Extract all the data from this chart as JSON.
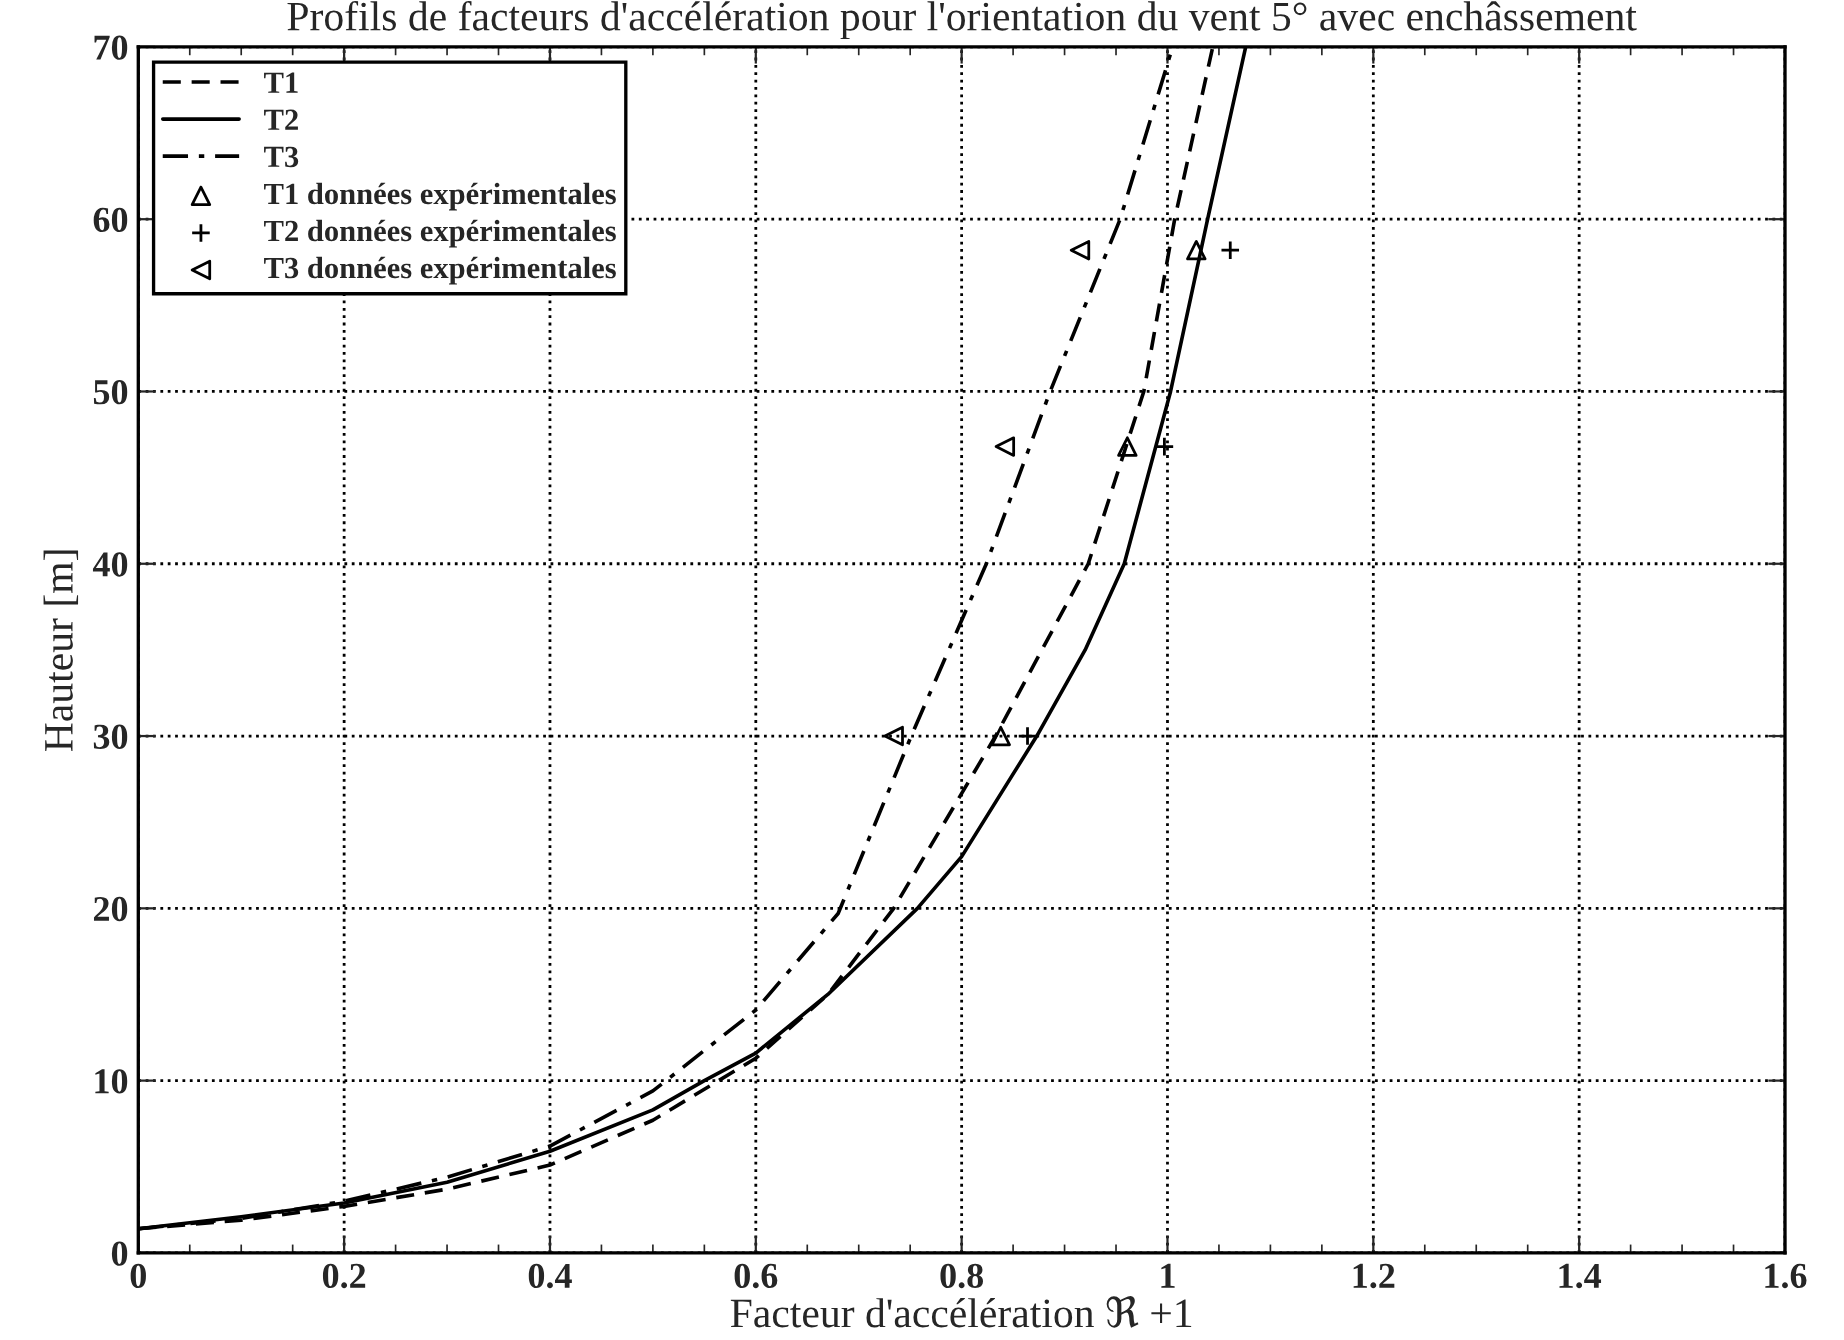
{
  "chart_data": {
    "type": "line",
    "title": "Profils de facteurs d'accélération pour l'orientation du vent 5° avec enchâssement",
    "xlabel": "Facteur d'accélération ℜ +1",
    "ylabel": "Hauteur [m]",
    "xlim": [
      0,
      1.6
    ],
    "xticks": [
      0,
      0.2,
      0.4,
      0.6,
      0.8,
      1,
      1.2,
      1.4,
      1.6
    ],
    "ylim": [
      0,
      70
    ],
    "yticks": [
      0,
      10,
      20,
      30,
      40,
      50,
      60,
      70
    ],
    "grid": true,
    "legend": "top left",
    "series": [
      {
        "name": "T1",
        "line_style": "dashed",
        "color": "#000000",
        "x": [
          0,
          0.1,
          0.2,
          0.3,
          0.4,
          0.5,
          0.6,
          0.67,
          0.734,
          0.833,
          0.923,
          0.977,
          1.007,
          1.044
        ],
        "values": [
          1.4,
          1.9,
          2.7,
          3.7,
          5.1,
          7.7,
          11.3,
          15,
          20,
          30,
          40,
          50,
          60,
          70
        ]
      },
      {
        "name": "T2",
        "line_style": "solid",
        "color": "#000000",
        "x": [
          0,
          0.1,
          0.2,
          0.3,
          0.4,
          0.5,
          0.55,
          0.6,
          0.67,
          0.757,
          0.8,
          0.873,
          0.92,
          0.958,
          1.003,
          1.039,
          1.076
        ],
        "values": [
          1.4,
          2.1,
          2.9,
          4.1,
          5.9,
          8.3,
          10,
          11.6,
          15,
          20,
          23,
          30,
          35,
          40,
          50,
          60,
          70
        ]
      },
      {
        "name": "T3",
        "line_style": "dashdot",
        "color": "#000000",
        "x": [
          0,
          0.1,
          0.2,
          0.3,
          0.4,
          0.5,
          0.6,
          0.68,
          0.751,
          0.824,
          0.886,
          0.954,
          1.005
        ],
        "values": [
          1.4,
          2.0,
          3.0,
          4.4,
          6.2,
          9.4,
          14.1,
          19.7,
          30,
          40,
          50,
          60,
          70
        ]
      },
      {
        "name": "T1 données expérimentales",
        "type": "scatter",
        "marker": "triangle",
        "color": "#000000",
        "x": [
          0.838,
          0.961,
          1.028
        ],
        "values": [
          30,
          46.8,
          58.2
        ]
      },
      {
        "name": "T2 données expérimentales",
        "type": "scatter",
        "marker": "cross",
        "color": "#000000",
        "x": [
          0.864,
          0.997,
          1.061
        ],
        "values": [
          30,
          46.8,
          58.2
        ]
      },
      {
        "name": "T3 données expérimentales",
        "type": "scatter",
        "marker": "triangle_left",
        "color": "#000000",
        "x": [
          0.734,
          0.842,
          0.915
        ],
        "values": [
          30,
          46.8,
          58.2
        ]
      }
    ]
  }
}
